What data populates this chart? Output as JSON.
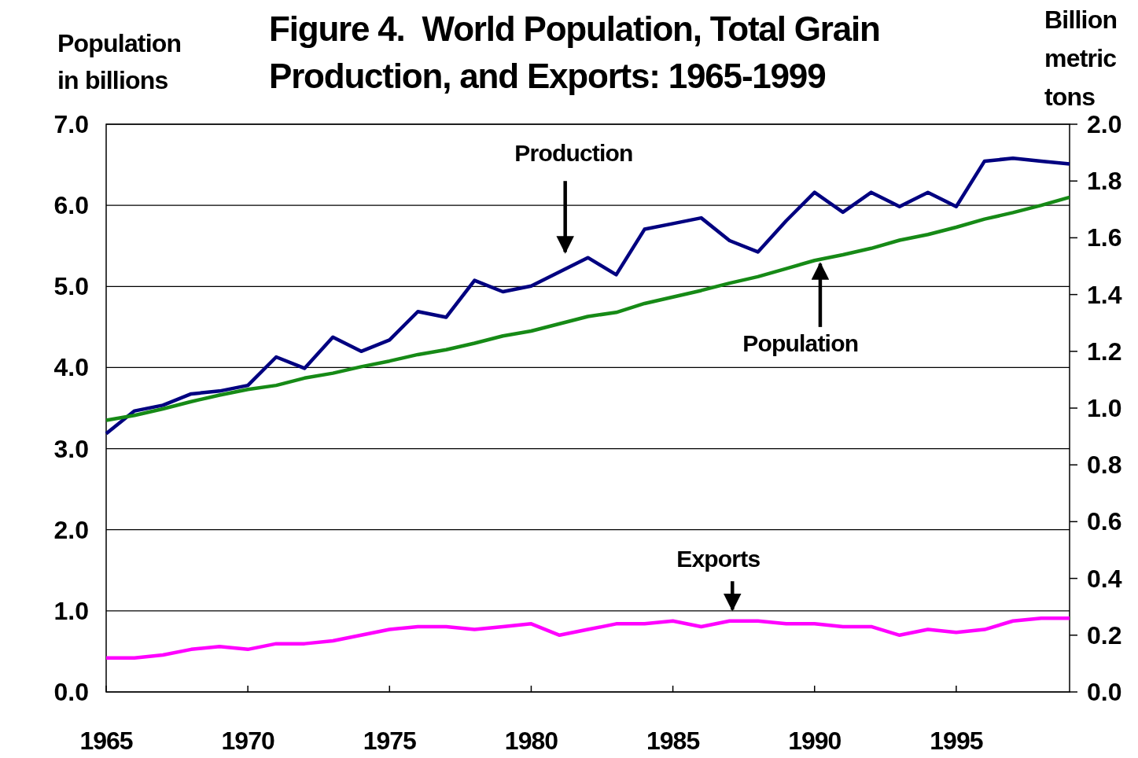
{
  "chart_data": {
    "type": "line",
    "title": "Figure 4.  World Population, Total Grain Production, and Exports: 1965-1999",
    "ylabel": "Population in billions",
    "y2label": "Billion metric tons",
    "x": [
      1965,
      1966,
      1967,
      1968,
      1969,
      1970,
      1971,
      1972,
      1973,
      1974,
      1975,
      1976,
      1977,
      1978,
      1979,
      1980,
      1981,
      1982,
      1983,
      1984,
      1985,
      1986,
      1987,
      1988,
      1989,
      1990,
      1991,
      1992,
      1993,
      1994,
      1995,
      1996,
      1997,
      1998,
      1999
    ],
    "series": [
      {
        "name": "Production",
        "color": "#000080",
        "axis": "y2",
        "values": [
          0.91,
          0.99,
          1.01,
          1.05,
          1.06,
          1.08,
          1.18,
          1.14,
          1.25,
          1.2,
          1.24,
          1.34,
          1.32,
          1.45,
          1.41,
          1.43,
          1.48,
          1.53,
          1.47,
          1.63,
          1.65,
          1.67,
          1.59,
          1.55,
          1.66,
          1.76,
          1.69,
          1.76,
          1.71,
          1.76,
          1.71,
          1.87,
          1.88,
          1.87,
          1.86
        ]
      },
      {
        "name": "Population",
        "color": "#168a16",
        "values": [
          3.35,
          3.41,
          3.49,
          3.58,
          3.66,
          3.73,
          3.78,
          3.87,
          3.93,
          4.01,
          4.08,
          4.16,
          4.22,
          4.3,
          4.39,
          4.45,
          4.54,
          4.63,
          4.68,
          4.79,
          4.87,
          4.95,
          5.04,
          5.12,
          5.22,
          5.32,
          5.39,
          5.47,
          5.57,
          5.64,
          5.73,
          5.83,
          5.91,
          6.0,
          6.1
        ]
      },
      {
        "name": "Exports",
        "color": "#ff00ff",
        "axis": "y2",
        "values": [
          0.12,
          0.12,
          0.13,
          0.15,
          0.16,
          0.15,
          0.17,
          0.17,
          0.18,
          0.2,
          0.22,
          0.23,
          0.23,
          0.22,
          0.23,
          0.24,
          0.2,
          0.22,
          0.24,
          0.24,
          0.25,
          0.23,
          0.25,
          0.25,
          0.24,
          0.24,
          0.23,
          0.23,
          0.2,
          0.22,
          0.21,
          0.22,
          0.25,
          0.26,
          0.26
        ]
      }
    ],
    "xlim": [
      1965,
      1999
    ],
    "xticks": [
      1965,
      1970,
      1975,
      1980,
      1985,
      1990,
      1995
    ],
    "ylim": [
      0,
      7
    ],
    "yticks": [
      {
        "value": 0,
        "label": "0.0"
      },
      {
        "value": 1,
        "label": "1.0"
      },
      {
        "value": 2,
        "label": "2.0"
      },
      {
        "value": 3,
        "label": "3.0"
      },
      {
        "value": 4,
        "label": "4.0"
      },
      {
        "value": 5,
        "label": "5.0"
      },
      {
        "value": 6,
        "label": "6.0"
      },
      {
        "value": 7,
        "label": "7.0"
      }
    ],
    "y2lim": [
      0,
      2
    ],
    "y2ticks": [
      {
        "value": 0,
        "label": "0.0"
      },
      {
        "value": 0.2,
        "label": "0.2"
      },
      {
        "value": 0.4,
        "label": "0.4"
      },
      {
        "value": 0.6,
        "label": "0.6"
      },
      {
        "value": 0.8,
        "label": "0.8"
      },
      {
        "value": 1,
        "label": "1.0"
      },
      {
        "value": 1.2,
        "label": "1.2"
      },
      {
        "value": 1.4,
        "label": "1.4"
      },
      {
        "value": 1.6,
        "label": "1.6"
      },
      {
        "value": 1.8,
        "label": "1.8"
      },
      {
        "value": 2,
        "label": "2.0"
      }
    ],
    "grid": "y",
    "legend": false,
    "marker": "none",
    "line_style": "solid"
  }
}
